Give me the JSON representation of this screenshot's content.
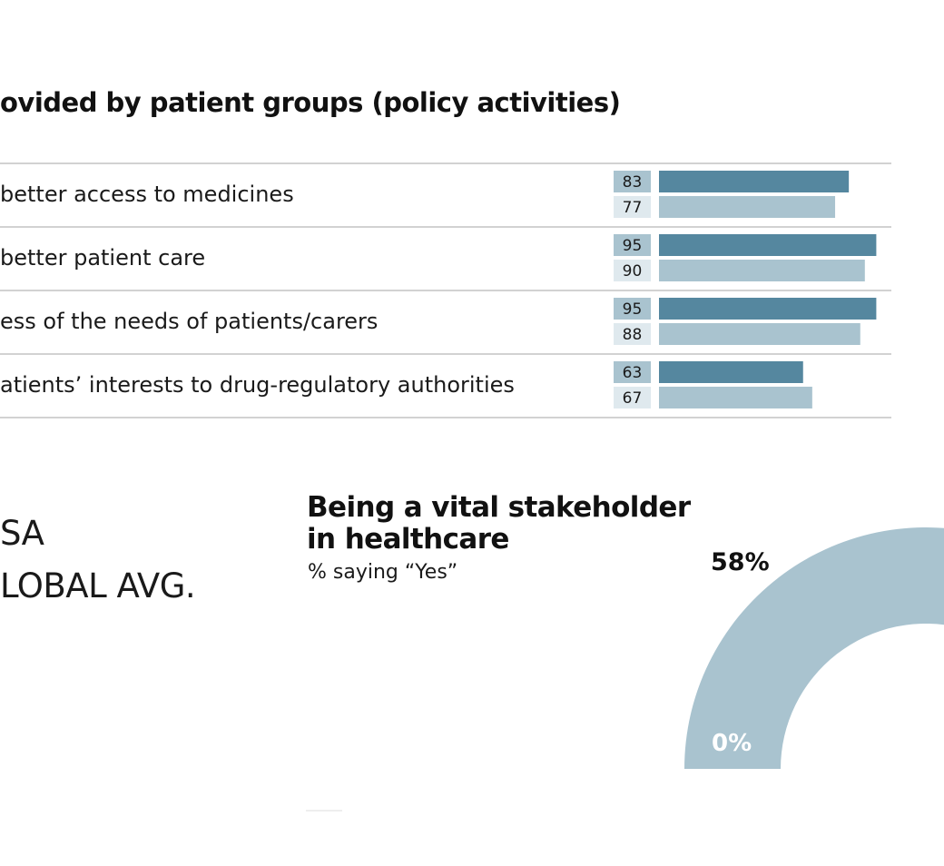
{
  "chart_data": [
    {
      "type": "bar",
      "title": "ovided by patient groups (policy activities)",
      "categories": [
        "better access to medicines",
        "better patient care",
        "ess of the needs of patients/carers",
        "atients’ interests to drug-regulatory authorities"
      ],
      "series": [
        {
          "values": [
            83,
            95,
            95,
            63
          ],
          "color": "#55879f"
        },
        {
          "values": [
            77,
            90,
            88,
            67
          ],
          "color": "#a9c3cf"
        }
      ],
      "xlim": [
        0,
        100
      ],
      "label_bg": [
        "#a9c3cf",
        "#dfe9ee"
      ],
      "gridline_color": "#c4c4c4"
    },
    {
      "type": "pie",
      "title": "Being a vital stakeholder in healthcare",
      "title_lines": [
        "Being a vital stakeholder",
        "in healthcare"
      ],
      "subtitle": "% saying “Yes”",
      "value": 58,
      "value_label": "58%",
      "scale_min_label": "0%",
      "color": "#a9c3cf"
    }
  ],
  "legend": {
    "items": [
      {
        "label": "SA"
      },
      {
        "label": "LOBAL AVG."
      }
    ]
  }
}
